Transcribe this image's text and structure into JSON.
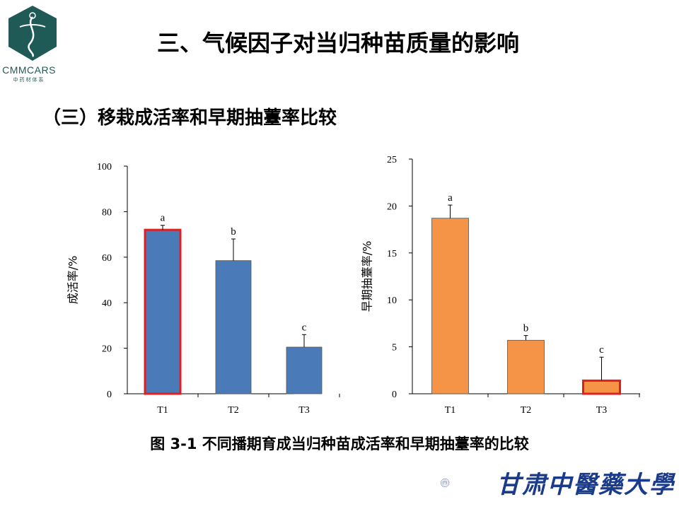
{
  "logo": {
    "text": "CMMCARS",
    "subtext": "中药材体系",
    "accent": "#1f5a57"
  },
  "title": "三、气候因子对当归种苗质量的影响",
  "subtitle": "（三）移栽成活率和早期抽薹率比较",
  "caption": "图 3-1 不同播期育成当归种苗成活率和早期抽薹率的比较",
  "university": {
    "name": "甘肃中醫藥大學",
    "color": "#1a3a8a"
  },
  "chart_data": [
    {
      "type": "bar",
      "categories": [
        "T1",
        "T2",
        "T3"
      ],
      "values": [
        72,
        58.5,
        20.5
      ],
      "errors": [
        2,
        9.5,
        5.5
      ],
      "letters": [
        "a",
        "b",
        "c"
      ],
      "highlight": [
        true,
        false,
        false
      ],
      "ylabel": "成活率/%",
      "ylim": [
        0,
        100
      ],
      "yticks": [
        0,
        20,
        40,
        60,
        80,
        100
      ],
      "color": "#4a7ab8",
      "highlight_color": "#e02020"
    },
    {
      "type": "bar",
      "categories": [
        "T1",
        "T2",
        "T3"
      ],
      "values": [
        18.7,
        5.7,
        1.4
      ],
      "errors": [
        1.4,
        0.5,
        2.5
      ],
      "letters": [
        "a",
        "b",
        "c"
      ],
      "highlight": [
        false,
        false,
        true
      ],
      "ylabel": "早期抽薹率/%",
      "ylim": [
        0,
        25
      ],
      "yticks": [
        0,
        5,
        10,
        15,
        20,
        25
      ],
      "color": "#f59446",
      "highlight_color": "#e02020"
    }
  ]
}
